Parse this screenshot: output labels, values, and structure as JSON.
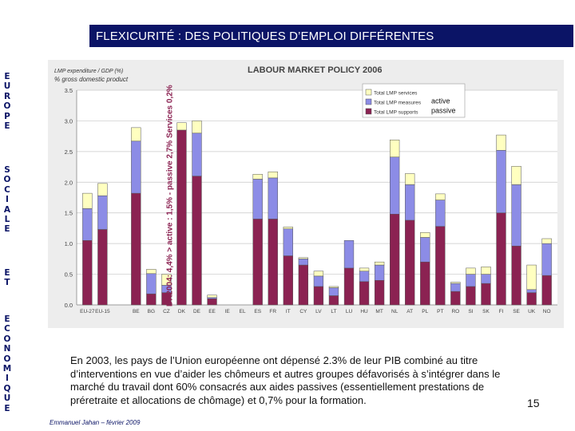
{
  "slide_title": "FLEXICURITÉ : DES POLITIQUES D’EMPLOI DIFFÉRENTES",
  "side_words": [
    "EUROPE",
    "SOCIALE",
    "ET",
    "ECONOMIQUE"
  ],
  "caption": "En 2003, les pays de l’Union européenne ont dépensé 2.3% de leur PIB combiné au titre d’interventions en vue d’aider les chômeurs et autres groupes défavorisés à s’intégrer dans le marché du travail dont 60% consacrés aux aides passives (essentiellement prestations de préretraite et allocations de chômage) et 0,7% pour la formation.",
  "page_number": "15",
  "author": "Emmanuel Jahan – février 2009",
  "chart_data": {
    "type": "bar",
    "stacked": true,
    "title": "LABOUR MARKET POLICY 2006",
    "ylabel_line1": "LMP expenditure / GDP (%)",
    "ylabel_line2": "% gross domestic product",
    "ylim": [
      0,
      3.5
    ],
    "yticks": [
      "0.0",
      "0.5",
      "1.0",
      "1.5",
      "2.0",
      "2.5",
      "3.0",
      "3.5"
    ],
    "categories": [
      "EU-27",
      "EU-15",
      "BE",
      "BG",
      "CZ",
      "DK",
      "DE",
      "EE",
      "IE",
      "EL",
      "ES",
      "FR",
      "IT",
      "CY",
      "LV",
      "LT",
      "LU",
      "HU",
      "MT",
      "NL",
      "AT",
      "PL",
      "PT",
      "RO",
      "SI",
      "SK",
      "FI",
      "SE",
      "UK",
      "NO"
    ],
    "series": [
      {
        "name": "Total LMP supports",
        "color": "#8b2252",
        "values": [
          1.05,
          1.23,
          1.82,
          0.18,
          0.2,
          2.85,
          2.1,
          0.1,
          null,
          null,
          1.4,
          1.4,
          0.8,
          0.65,
          0.3,
          0.15,
          0.6,
          0.38,
          0.4,
          1.48,
          1.38,
          0.7,
          1.28,
          0.22,
          0.3,
          0.35,
          1.5,
          0.96,
          0.2,
          0.48
        ]
      },
      {
        "name": "Total LMP measures",
        "color": "#8c8ce6",
        "values": [
          0.52,
          0.55,
          0.85,
          0.33,
          0.12,
          0.0,
          0.7,
          0.02,
          null,
          null,
          0.65,
          0.67,
          0.44,
          0.1,
          0.17,
          0.13,
          0.45,
          0.17,
          0.25,
          0.93,
          0.58,
          0.4,
          0.43,
          0.13,
          0.2,
          0.15,
          1.02,
          1.0,
          0.05,
          0.52
        ]
      },
      {
        "name": "Total LMP services",
        "color": "#ffffc0",
        "values": [
          0.25,
          0.2,
          0.22,
          0.07,
          0.18,
          0.12,
          0.2,
          0.04,
          null,
          null,
          0.08,
          0.1,
          0.03,
          0.02,
          0.08,
          0.02,
          0.0,
          0.05,
          0.05,
          0.28,
          0.18,
          0.08,
          0.1,
          0.02,
          0.1,
          0.12,
          0.25,
          0.3,
          0.4,
          0.08
        ]
      }
    ],
    "active_label": "active",
    "passive_label": "passive",
    "annotation": "DK2004: 4,4% > active : 1,5% - passive 2,7% Services 0,2%",
    "grid": true,
    "legend_position": "top-right"
  }
}
